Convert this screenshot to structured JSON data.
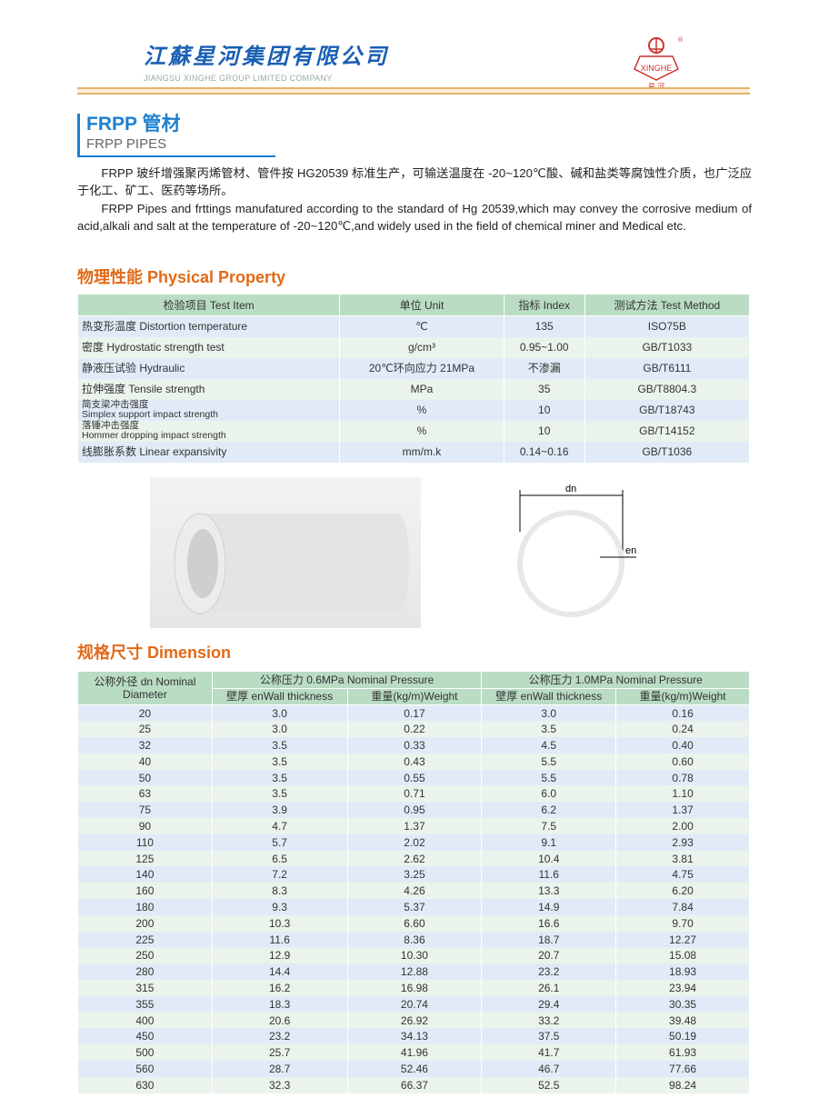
{
  "header": {
    "company_cn": "江蘇星河集团有限公司",
    "company_en": "JIANGSU XINGHE GROUP LIMITED COMPANY",
    "logo_text": "XINGHE",
    "logo_cn": "星 河",
    "logo_mark": "®"
  },
  "section": {
    "title": "FRPP 管材",
    "subtitle": "FRPP PIPES"
  },
  "intro": {
    "cn": "FRPP 玻纤增强聚丙烯管材、管件按 HG20539 标准生产，可输送温度在 -20~120℃酸、碱和盐类等腐蚀性介质，也广泛应于化工、矿工、医药等场所。",
    "en": "FRPP Pipes and frttings manufatured according to the standard of Hg 20539,which may convey the corrosive medium of acid,alkali and salt at the temperature of -20~120℃,and widely used in the field of chemical miner and Medical etc."
  },
  "property": {
    "heading": "物理性能 Physical Property",
    "headers": [
      "检验项目 Test Item",
      "单位 Unit",
      "指标 Index",
      "测试方法 Test Method"
    ],
    "rows": [
      [
        "热变形温度 Distortion temperature",
        "℃",
        "135",
        "ISO75B"
      ],
      [
        "密度 Hydrostatic strength test",
        "g/cm³",
        "0.95~1.00",
        "GB/T1033"
      ],
      [
        "静液压试验 Hydraulic",
        "20℃环向应力 21MPa",
        "不渗漏",
        "GB/T6111"
      ],
      [
        "拉伸强度 Tensile strength",
        "MPa",
        "35",
        "GB/T8804.3"
      ],
      [
        "简支梁冲击强度|Simplex support impact strength",
        "%",
        "10",
        "GB/T18743"
      ],
      [
        "落锤冲击强度|Hommer dropping impact strength",
        "%",
        "10",
        "GB/T14152"
      ],
      [
        "线膨胀系数 Linear expansivity",
        "mm/m.k",
        "0.14~0.16",
        "GB/T1036"
      ]
    ]
  },
  "diagram": {
    "dn": "dn",
    "en": "en"
  },
  "dimension": {
    "heading": "规格尺寸 Dimension",
    "col_diameter": "公称外径 dn Nominal Diameter",
    "group1": "公称压力 0.6MPa Nominal Pressure",
    "group2": "公称压力 1.0MPa Nominal Pressure",
    "sub": [
      "壁厚 enWall thickness",
      "重量(kg/m)Weight",
      "壁厚 enWall thickness",
      "重量(kg/m)Weight"
    ],
    "rows": [
      [
        "20",
        "3.0",
        "0.17",
        "3.0",
        "0.16"
      ],
      [
        "25",
        "3.0",
        "0.22",
        "3.5",
        "0.24"
      ],
      [
        "32",
        "3.5",
        "0.33",
        "4.5",
        "0.40"
      ],
      [
        "40",
        "3.5",
        "0.43",
        "5.5",
        "0.60"
      ],
      [
        "50",
        "3.5",
        "0.55",
        "5.5",
        "0.78"
      ],
      [
        "63",
        "3.5",
        "0.71",
        "6.0",
        "1.10"
      ],
      [
        "75",
        "3.9",
        "0.95",
        "6.2",
        "1.37"
      ],
      [
        "90",
        "4.7",
        "1.37",
        "7.5",
        "2.00"
      ],
      [
        "110",
        "5.7",
        "2.02",
        "9.1",
        "2.93"
      ],
      [
        "125",
        "6.5",
        "2.62",
        "10.4",
        "3.81"
      ],
      [
        "140",
        "7.2",
        "3.25",
        "11.6",
        "4.75"
      ],
      [
        "160",
        "8.3",
        "4.26",
        "13.3",
        "6.20"
      ],
      [
        "180",
        "9.3",
        "5.37",
        "14.9",
        "7.84"
      ],
      [
        "200",
        "10.3",
        "6.60",
        "16.6",
        "9.70"
      ],
      [
        "225",
        "11.6",
        "8.36",
        "18.7",
        "12.27"
      ],
      [
        "250",
        "12.9",
        "10.30",
        "20.7",
        "15.08"
      ],
      [
        "280",
        "14.4",
        "12.88",
        "23.2",
        "18.93"
      ],
      [
        "315",
        "16.2",
        "16.98",
        "26.1",
        "23.94"
      ],
      [
        "355",
        "18.3",
        "20.74",
        "29.4",
        "30.35"
      ],
      [
        "400",
        "20.6",
        "26.92",
        "33.2",
        "39.48"
      ],
      [
        "450",
        "23.2",
        "34.13",
        "37.5",
        "50.19"
      ],
      [
        "500",
        "25.7",
        "41.96",
        "41.7",
        "61.93"
      ],
      [
        "560",
        "28.7",
        "52.46",
        "46.7",
        "77.66"
      ],
      [
        "630",
        "32.3",
        "66.37",
        "52.5",
        "98.24"
      ]
    ]
  },
  "colors": {
    "brand_blue": "#1c7fd0",
    "heading_orange": "#e26a17",
    "header_green": "#b9dcc3",
    "row_blue": "#e1ebf7",
    "row_green": "#eaf3ec",
    "logo_red": "#d0312d"
  }
}
